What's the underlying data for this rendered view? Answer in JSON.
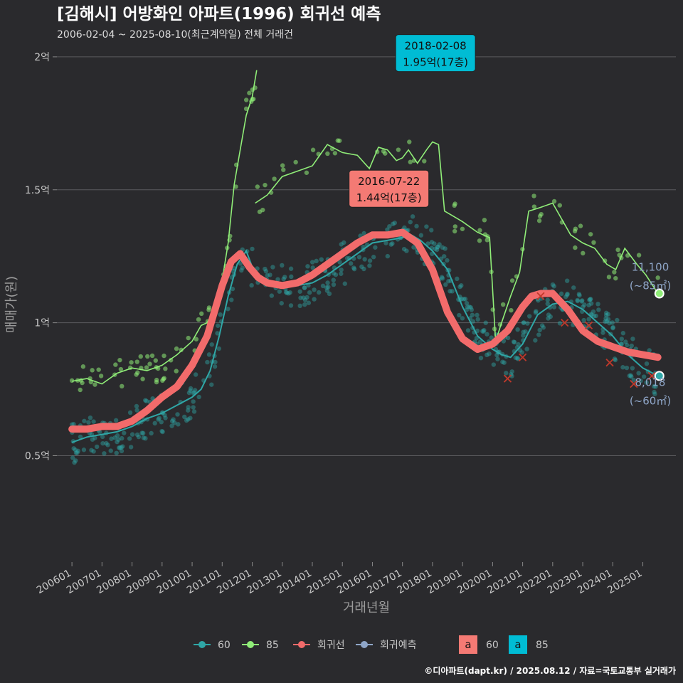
{
  "title": "[김해시] 어방화인 아파트(1996) 회귀선 예측",
  "subtitle": "2006-02-04 ~ 2025-08-10(최근계약일) 전체 거래건",
  "credit": "©디아파트(dapt.kr) / 2025.08.12 / 자료=국토교통부 실거래가",
  "colors": {
    "background": "#2a2a2d",
    "series60": "#2fa7a7",
    "series85": "#90ee78",
    "regression": "#f26b6b",
    "forecast": "#8fa6c8",
    "label60_bg": "#f47a74",
    "label85_bg": "#00bcd4"
  },
  "chart_data": {
    "type": "line",
    "xlabel": "거래년월",
    "ylabel": "매매가(원)",
    "x_ticks": [
      "200601",
      "200701",
      "200801",
      "200901",
      "201001",
      "201101",
      "201201",
      "201301",
      "201401",
      "201501",
      "201601",
      "201701",
      "201801",
      "201901",
      "202001",
      "202101",
      "202201",
      "202301",
      "202401",
      "202501"
    ],
    "y_ticks": [
      "0.5억",
      "1억",
      "1.5억",
      "2억"
    ],
    "y_tick_values": [
      0.5,
      1.0,
      1.5,
      2.0
    ],
    "ylim": [
      0.1,
      2.08
    ],
    "xlim": [
      2005.5,
      2026.1
    ],
    "grid": true,
    "series": [
      {
        "name": "60",
        "x": [
          2006.0,
          2006.5,
          2007.0,
          2007.5,
          2008.0,
          2008.5,
          2009.0,
          2009.5,
          2010.0,
          2010.3,
          2010.6,
          2010.9,
          2011.2,
          2011.5,
          2011.8,
          2012.0,
          2012.3,
          2012.6,
          2013.0,
          2013.5,
          2014.0,
          2014.5,
          2015.0,
          2015.5,
          2016.0,
          2016.5,
          2017.0,
          2017.3,
          2017.6,
          2018.0,
          2018.5,
          2019.0,
          2019.5,
          2020.0,
          2020.3,
          2020.6,
          2021.0,
          2021.5,
          2022.0,
          2022.5,
          2023.0,
          2023.5,
          2024.0,
          2024.5,
          2025.0,
          2025.5
        ],
        "y": [
          0.55,
          0.57,
          0.58,
          0.59,
          0.61,
          0.64,
          0.66,
          0.69,
          0.72,
          0.75,
          0.82,
          0.95,
          1.1,
          1.22,
          1.27,
          1.21,
          1.17,
          1.15,
          1.14,
          1.14,
          1.15,
          1.18,
          1.22,
          1.26,
          1.3,
          1.31,
          1.32,
          1.33,
          1.31,
          1.27,
          1.2,
          1.06,
          0.95,
          0.9,
          0.88,
          0.87,
          0.92,
          1.03,
          1.07,
          1.08,
          1.05,
          1.0,
          0.95,
          0.88,
          0.83,
          0.8
        ]
      },
      {
        "name": "85",
        "x": [
          2006.0,
          2006.5,
          2007.0,
          2007.5,
          2008.0,
          2008.5,
          2009.0,
          2009.5,
          2010.0,
          2010.3,
          2010.5,
          2010.8,
          2011.0,
          2011.2,
          2011.4,
          2011.6,
          2011.8,
          2012.0,
          2012.15
        ],
        "y": [
          0.78,
          0.79,
          0.77,
          0.81,
          0.83,
          0.82,
          0.84,
          0.88,
          0.93,
          0.99,
          1.0,
          1.06,
          1.16,
          1.3,
          1.52,
          1.65,
          1.78,
          1.85,
          1.95
        ]
      },
      {
        "name": "85",
        "x": [
          2012.1,
          2012.5,
          2013.0,
          2013.5,
          2014.0,
          2014.5,
          2015.0,
          2015.5,
          2015.9,
          2016.2,
          2016.5,
          2016.8,
          2017.0,
          2017.2,
          2017.5,
          2017.8,
          2018.0,
          2018.2,
          2018.4,
          2018.7,
          2019.0,
          2019.5,
          2019.9,
          2020.1,
          2020.3,
          2020.6,
          2020.9,
          2021.2,
          2021.5,
          2022.0,
          2022.3,
          2022.6,
          2023.0,
          2023.4,
          2023.8,
          2024.1,
          2024.4,
          2024.8,
          2025.1,
          2025.5
        ],
        "y": [
          1.45,
          1.48,
          1.55,
          1.57,
          1.59,
          1.67,
          1.64,
          1.63,
          1.58,
          1.66,
          1.65,
          1.61,
          1.62,
          1.65,
          1.6,
          1.65,
          1.68,
          1.67,
          1.42,
          1.4,
          1.38,
          1.34,
          1.32,
          0.93,
          1.0,
          1.1,
          1.19,
          1.42,
          1.43,
          1.45,
          1.39,
          1.33,
          1.3,
          1.28,
          1.22,
          1.2,
          1.28,
          1.22,
          1.18,
          1.11
        ]
      },
      {
        "name": "회귀선",
        "x": [
          2006.0,
          2006.5,
          2007.0,
          2007.5,
          2008.0,
          2008.5,
          2009.0,
          2009.5,
          2010.0,
          2010.5,
          2011.0,
          2011.3,
          2011.6,
          2011.9,
          2012.2,
          2012.5,
          2013.0,
          2013.5,
          2014.0,
          2014.5,
          2015.0,
          2015.5,
          2016.0,
          2016.5,
          2017.0,
          2017.5,
          2018.0,
          2018.5,
          2019.0,
          2019.5,
          2020.0,
          2020.5,
          2021.0,
          2021.3,
          2021.6,
          2022.0,
          2022.5,
          2023.0,
          2023.5,
          2024.0,
          2024.5,
          2025.0,
          2025.5
        ],
        "y": [
          0.6,
          0.6,
          0.61,
          0.61,
          0.63,
          0.67,
          0.72,
          0.76,
          0.84,
          0.95,
          1.14,
          1.23,
          1.26,
          1.21,
          1.17,
          1.15,
          1.14,
          1.15,
          1.18,
          1.22,
          1.26,
          1.3,
          1.33,
          1.33,
          1.34,
          1.3,
          1.2,
          1.04,
          0.94,
          0.9,
          0.92,
          0.97,
          1.06,
          1.1,
          1.11,
          1.11,
          1.05,
          0.97,
          0.93,
          0.91,
          0.89,
          0.88,
          0.87
        ]
      },
      {
        "name": "회귀예측",
        "x": [
          2020.5,
          2021.0,
          2021.6,
          2022.4,
          2023.2,
          2023.9,
          2024.7,
          2025.3
        ],
        "y": [
          0.79,
          0.87,
          1.1,
          1.0,
          0.99,
          0.85,
          0.77,
          0.8
        ]
      }
    ],
    "annotations": [
      {
        "date": "2018-02-08",
        "price": "1.95억(17층)",
        "series": "85",
        "x": 2018.1,
        "y": 1.95
      },
      {
        "date": "2016-07-22",
        "price": "1.44억(17층)",
        "series": "60",
        "x": 2016.55,
        "y": 1.44
      }
    ],
    "end_labels": [
      {
        "value": "11,100",
        "area": "(~85㎡)",
        "x": 2025.55,
        "y": 1.11
      },
      {
        "value": "8,018",
        "area": "(~60㎡)",
        "x": 2025.55,
        "y": 0.8
      }
    ],
    "legend": {
      "position": "bottom",
      "items": [
        {
          "name": "60",
          "type": "point-line"
        },
        {
          "name": "85",
          "type": "point-line"
        },
        {
          "name": "회귀선",
          "type": "point-line"
        },
        {
          "name": "회귀예측",
          "type": "point-line"
        }
      ],
      "label_items": [
        {
          "glyph": "a",
          "name": "60"
        },
        {
          "glyph": "a",
          "name": "85"
        }
      ]
    }
  }
}
